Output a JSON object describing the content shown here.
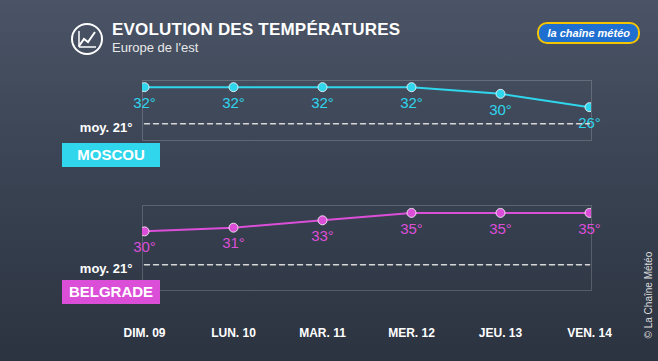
{
  "chart_data": [
    {
      "type": "line",
      "title": "EVOLUTION DES TEMPÉRATURES",
      "subtitle": "Europe de l'est",
      "logo": "la chaîne météo",
      "source": "© La Chaîne Météo",
      "categories": [
        "DIM. 09",
        "LUN. 10",
        "MAR. 11",
        "MER. 12",
        "JEU. 13",
        "VEN. 14"
      ],
      "ylim": [
        16,
        34
      ],
      "tick_labels": false,
      "data_labels": true,
      "series": [
        {
          "name": "MOSCOU",
          "color": "#2fd6ec",
          "marker": "circle",
          "values": [
            32,
            32,
            32,
            32,
            30,
            26
          ],
          "value_labels": [
            "32°",
            "32°",
            "32°",
            "32°",
            "30°",
            "26°"
          ]
        },
        {
          "name": "moy. 21°",
          "color": "#d8d8d8",
          "line_style": "dashed",
          "values": [
            21,
            21,
            21,
            21,
            21,
            21
          ]
        }
      ]
    },
    {
      "type": "line",
      "categories": [
        "DIM. 09",
        "LUN. 10",
        "MAR. 11",
        "MER. 12",
        "JEU. 13",
        "VEN. 14"
      ],
      "ylim": [
        14,
        37
      ],
      "tick_labels": "x",
      "data_labels": true,
      "series": [
        {
          "name": "BELGRADE",
          "color": "#db4fd8",
          "marker": "circle",
          "values": [
            30,
            31,
            33,
            35,
            35,
            35
          ],
          "value_labels": [
            "30°",
            "31°",
            "33°",
            "35°",
            "35°",
            "35°"
          ]
        },
        {
          "name": "moy. 21°",
          "color": "#d8d8d8",
          "line_style": "dashed",
          "values": [
            21,
            21,
            21,
            21,
            21,
            21
          ]
        }
      ]
    }
  ]
}
